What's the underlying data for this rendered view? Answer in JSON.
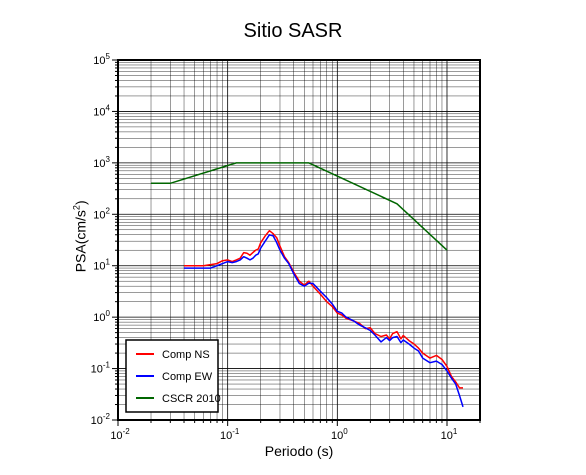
{
  "chart_data": {
    "type": "line",
    "title": "Sitio SASR",
    "xlabel": "Periodo (s)",
    "ylabel_main": "PSA(cm/s",
    "ylabel_sup": "2",
    "ylabel_close": ")",
    "xscale": "log",
    "yscale": "log",
    "xlim": [
      0.01,
      20
    ],
    "ylim": [
      0.01,
      100000
    ],
    "x_ticks": [
      {
        "value": 0.01,
        "base": "10",
        "exp": "-2"
      },
      {
        "value": 0.1,
        "base": "10",
        "exp": "-1"
      },
      {
        "value": 1,
        "base": "10",
        "exp": "0"
      },
      {
        "value": 10,
        "base": "10",
        "exp": "1"
      }
    ],
    "y_ticks": [
      {
        "value": 0.01,
        "base": "10",
        "exp": "-2"
      },
      {
        "value": 0.1,
        "base": "10",
        "exp": "-1"
      },
      {
        "value": 1,
        "base": "10",
        "exp": "0"
      },
      {
        "value": 10,
        "base": "10",
        "exp": "1"
      },
      {
        "value": 100,
        "base": "10",
        "exp": "2"
      },
      {
        "value": 1000,
        "base": "10",
        "exp": "3"
      },
      {
        "value": 10000,
        "base": "10",
        "exp": "4"
      },
      {
        "value": 100000,
        "base": "10",
        "exp": "5"
      }
    ],
    "grid": true,
    "legend_position": "bottom-left",
    "series": [
      {
        "name": "Comp NS",
        "color": "#ff0000",
        "x": [
          0.04,
          0.05,
          0.06,
          0.07,
          0.08,
          0.09,
          0.1,
          0.11,
          0.12,
          0.13,
          0.14,
          0.15,
          0.16,
          0.17,
          0.18,
          0.19,
          0.2,
          0.22,
          0.24,
          0.26,
          0.28,
          0.3,
          0.33,
          0.36,
          0.4,
          0.45,
          0.5,
          0.55,
          0.6,
          0.7,
          0.8,
          0.9,
          1.0,
          1.1,
          1.2,
          1.4,
          1.6,
          1.8,
          2.0,
          2.2,
          2.5,
          2.8,
          3.0,
          3.2,
          3.5,
          3.8,
          4.0,
          4.5,
          5.0,
          5.5,
          6.0,
          7.0,
          8.0,
          9.0,
          10.0,
          11.0,
          12.0,
          13.0,
          14.0
        ],
        "y": [
          10,
          10,
          10,
          10.5,
          11,
          12.5,
          13,
          12,
          13,
          14,
          18,
          17.5,
          16,
          18,
          20,
          21,
          28,
          38,
          48,
          42,
          35,
          24,
          15,
          11.5,
          7.5,
          5.0,
          4.2,
          5.0,
          4.0,
          2.8,
          2.0,
          1.6,
          1.2,
          1.1,
          0.95,
          0.85,
          0.75,
          0.6,
          0.62,
          0.48,
          0.42,
          0.45,
          0.38,
          0.48,
          0.52,
          0.38,
          0.44,
          0.35,
          0.3,
          0.25,
          0.2,
          0.16,
          0.18,
          0.15,
          0.11,
          0.07,
          0.055,
          0.042,
          0.042
        ]
      },
      {
        "name": "Comp EW",
        "color": "#0000ff",
        "x": [
          0.04,
          0.05,
          0.06,
          0.07,
          0.08,
          0.09,
          0.1,
          0.11,
          0.12,
          0.13,
          0.14,
          0.15,
          0.16,
          0.17,
          0.18,
          0.19,
          0.2,
          0.22,
          0.24,
          0.26,
          0.28,
          0.3,
          0.33,
          0.36,
          0.4,
          0.45,
          0.5,
          0.55,
          0.6,
          0.7,
          0.8,
          0.9,
          1.0,
          1.1,
          1.2,
          1.4,
          1.6,
          1.8,
          2.0,
          2.2,
          2.5,
          2.8,
          3.0,
          3.2,
          3.5,
          3.8,
          4.0,
          4.5,
          5.0,
          5.5,
          6.0,
          7.0,
          8.0,
          9.0,
          10.0,
          11.0,
          12.0,
          13.0,
          14.0
        ],
        "y": [
          9,
          9,
          9,
          9,
          10,
          11,
          12,
          11.5,
          12,
          13,
          15,
          14,
          13,
          14,
          16,
          17,
          22,
          30,
          40,
          38,
          28,
          20,
          14,
          11,
          7.0,
          4.5,
          4.0,
          4.6,
          4.5,
          3.2,
          2.4,
          1.8,
          1.3,
          1.2,
          1.0,
          0.85,
          0.7,
          0.62,
          0.55,
          0.45,
          0.33,
          0.4,
          0.35,
          0.4,
          0.42,
          0.32,
          0.36,
          0.3,
          0.25,
          0.22,
          0.16,
          0.13,
          0.14,
          0.12,
          0.09,
          0.065,
          0.05,
          0.03,
          0.018
        ]
      },
      {
        "name": "CSCR 2010",
        "color": "#006600",
        "x": [
          0.02,
          0.03,
          0.12,
          0.55,
          3.5,
          10.0
        ],
        "y": [
          400,
          400,
          1000,
          1000,
          160,
          20
        ]
      }
    ]
  }
}
